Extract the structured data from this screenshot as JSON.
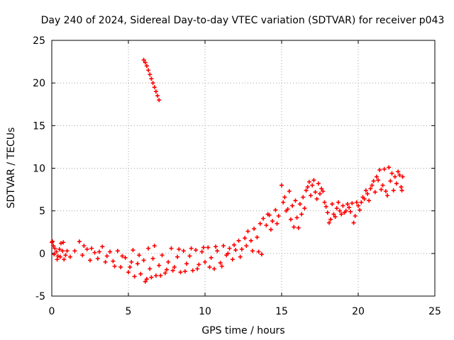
{
  "chart_data": {
    "type": "scatter",
    "title": "Day 240 of 2024, Sidereal Day-to-day VTEC variation (SDTVAR) for receiver p043",
    "xlabel": "GPS time / hours",
    "ylabel": "SDTVAR / TECUs",
    "xlim": [
      0,
      25
    ],
    "ylim": [
      -5,
      25
    ],
    "x_ticks": [
      "0",
      "5",
      "10",
      "15",
      "20",
      "25"
    ],
    "y_ticks": [
      "-5",
      "0",
      "5",
      "10",
      "15",
      "20",
      "25"
    ],
    "grid": true,
    "marker": "+",
    "series": [
      {
        "name": "SDTVAR",
        "color": "#ff0000",
        "points": [
          [
            0.0,
            1.3
          ],
          [
            0.1,
            0.9
          ],
          [
            0.2,
            0.6
          ],
          [
            0.3,
            0.2
          ],
          [
            0.4,
            -0.3
          ],
          [
            0.5,
            0.5
          ],
          [
            0.6,
            1.2
          ],
          [
            0.7,
            0.3
          ],
          [
            0.8,
            -0.7
          ],
          [
            0.9,
            -0.2
          ],
          [
            1.2,
            -0.4
          ],
          [
            1.5,
            0.3
          ],
          [
            1.8,
            1.4
          ],
          [
            2.0,
            -0.2
          ],
          [
            2.3,
            0.5
          ],
          [
            2.5,
            -0.8
          ],
          [
            2.8,
            0.1
          ],
          [
            3.0,
            -0.6
          ],
          [
            3.3,
            0.8
          ],
          [
            3.5,
            -1.0
          ],
          [
            3.8,
            0.2
          ],
          [
            4.0,
            -0.9
          ],
          [
            4.3,
            0.3
          ],
          [
            4.5,
            -1.6
          ],
          [
            4.8,
            -0.5
          ],
          [
            5.0,
            -2.2
          ],
          [
            5.2,
            -1.0
          ],
          [
            5.4,
            -2.7
          ],
          [
            5.6,
            -1.2
          ],
          [
            5.8,
            -2.4
          ],
          [
            6.0,
            -0.8
          ],
          [
            6.2,
            -3.0
          ],
          [
            6.4,
            -1.8
          ],
          [
            6.6,
            -0.6
          ],
          [
            6.8,
            -2.6
          ],
          [
            7.0,
            -1.4
          ],
          [
            7.2,
            -0.2
          ],
          [
            7.4,
            -2.3
          ],
          [
            7.6,
            -1.0
          ],
          [
            7.8,
            0.6
          ],
          [
            8.0,
            -1.6
          ],
          [
            8.2,
            -0.4
          ],
          [
            8.4,
            -2.2
          ],
          [
            8.6,
            0.3
          ],
          [
            8.8,
            -1.2
          ],
          [
            9.0,
            -0.3
          ],
          [
            9.2,
            -2.0
          ],
          [
            9.4,
            0.4
          ],
          [
            9.6,
            -1.3
          ],
          [
            9.8,
            0.2
          ],
          [
            10.0,
            -1.0
          ],
          [
            10.2,
            0.7
          ],
          [
            10.4,
            -0.5
          ],
          [
            10.6,
            -1.8
          ],
          [
            10.8,
            0.3
          ],
          [
            11.0,
            -1.1
          ],
          [
            11.2,
            0.9
          ],
          [
            11.4,
            -0.2
          ],
          [
            11.6,
            0.6
          ],
          [
            11.8,
            -0.7
          ],
          [
            12.0,
            0.4
          ],
          [
            12.2,
            1.5
          ],
          [
            12.4,
            0.5
          ],
          [
            12.6,
            1.8
          ],
          [
            12.8,
            2.6
          ],
          [
            13.0,
            1.5
          ],
          [
            13.2,
            2.9
          ],
          [
            13.4,
            1.9
          ],
          [
            13.6,
            3.5
          ],
          [
            13.8,
            4.1
          ],
          [
            14.0,
            3.3
          ],
          [
            14.2,
            4.5
          ],
          [
            14.4,
            3.8
          ],
          [
            14.6,
            5.1
          ],
          [
            14.8,
            4.4
          ],
          [
            15.0,
            8.0
          ],
          [
            15.2,
            6.6
          ],
          [
            15.4,
            5.2
          ],
          [
            15.6,
            4.0
          ],
          [
            15.8,
            3.1
          ],
          [
            16.0,
            4.2
          ],
          [
            16.2,
            5.8
          ],
          [
            16.4,
            6.6
          ],
          [
            16.6,
            7.4
          ],
          [
            16.8,
            8.4
          ],
          [
            17.0,
            8.0
          ],
          [
            17.2,
            7.2
          ],
          [
            17.4,
            8.2
          ],
          [
            17.6,
            7.6
          ],
          [
            17.8,
            6.0
          ],
          [
            18.0,
            4.8
          ],
          [
            18.2,
            4.0
          ],
          [
            18.4,
            4.6
          ],
          [
            18.6,
            5.3
          ],
          [
            18.8,
            5.0
          ],
          [
            19.0,
            5.6
          ],
          [
            19.2,
            5.0
          ],
          [
            19.4,
            5.4
          ],
          [
            19.6,
            5.9
          ],
          [
            19.8,
            4.4
          ],
          [
            20.0,
            5.6
          ],
          [
            20.2,
            6.0
          ],
          [
            20.4,
            6.4
          ],
          [
            20.6,
            7.0
          ],
          [
            20.8,
            7.6
          ],
          [
            21.0,
            8.5
          ],
          [
            21.2,
            9.0
          ],
          [
            21.4,
            9.8
          ],
          [
            21.6,
            8.0
          ],
          [
            21.8,
            7.3
          ],
          [
            22.0,
            10.1
          ],
          [
            22.2,
            9.4
          ],
          [
            22.4,
            9.0
          ],
          [
            22.6,
            9.6
          ],
          [
            22.8,
            7.8
          ],
          [
            22.9,
            9.0
          ],
          [
            6.0,
            22.7
          ],
          [
            6.2,
            22.0
          ],
          [
            6.4,
            21.0
          ],
          [
            6.6,
            20.0
          ],
          [
            6.8,
            19.0
          ],
          [
            7.0,
            18.0
          ],
          [
            0.05,
            1.4
          ],
          [
            0.15,
            -0.1
          ],
          [
            0.35,
            -0.7
          ],
          [
            0.55,
            -0.4
          ],
          [
            0.75,
            1.3
          ],
          [
            1.0,
            0.3
          ],
          [
            2.1,
            0.9
          ],
          [
            2.6,
            0.6
          ],
          [
            3.1,
            0.2
          ],
          [
            3.6,
            -0.3
          ],
          [
            4.1,
            -1.5
          ],
          [
            4.6,
            -0.3
          ],
          [
            5.1,
            -1.6
          ],
          [
            5.3,
            0.4
          ],
          [
            5.7,
            -0.2
          ],
          [
            6.1,
            -3.3
          ],
          [
            6.3,
            0.6
          ],
          [
            6.5,
            -2.8
          ],
          [
            6.7,
            0.9
          ],
          [
            7.1,
            -2.6
          ],
          [
            7.5,
            -1.9
          ],
          [
            7.9,
            -2.0
          ],
          [
            8.3,
            0.5
          ],
          [
            8.7,
            -2.1
          ],
          [
            9.1,
            0.6
          ],
          [
            9.5,
            -1.8
          ],
          [
            9.9,
            0.7
          ],
          [
            10.3,
            -1.6
          ],
          [
            10.7,
            0.8
          ],
          [
            11.1,
            -1.5
          ],
          [
            11.5,
            0.0
          ],
          [
            11.9,
            1.0
          ],
          [
            12.3,
            -0.4
          ],
          [
            12.7,
            0.9
          ],
          [
            13.1,
            0.3
          ],
          [
            13.5,
            0.2
          ],
          [
            13.7,
            -0.1
          ],
          [
            14.1,
            4.6
          ],
          [
            14.3,
            2.8
          ],
          [
            14.7,
            3.5
          ],
          [
            15.1,
            6.0
          ],
          [
            15.3,
            5.0
          ],
          [
            15.5,
            7.3
          ],
          [
            15.7,
            5.6
          ],
          [
            15.9,
            6.2
          ],
          [
            16.1,
            3.0
          ],
          [
            16.3,
            4.6
          ],
          [
            16.5,
            5.3
          ],
          [
            16.7,
            7.8
          ],
          [
            16.9,
            6.8
          ],
          [
            17.1,
            8.6
          ],
          [
            17.3,
            6.4
          ],
          [
            17.5,
            7.0
          ],
          [
            17.7,
            7.3
          ],
          [
            17.9,
            5.5
          ],
          [
            18.1,
            3.6
          ],
          [
            18.3,
            5.8
          ],
          [
            18.5,
            4.3
          ],
          [
            18.7,
            6.0
          ],
          [
            18.9,
            4.6
          ],
          [
            19.1,
            4.8
          ],
          [
            19.3,
            5.8
          ],
          [
            19.5,
            4.9
          ],
          [
            19.7,
            3.6
          ],
          [
            19.9,
            6.0
          ],
          [
            20.1,
            5.1
          ],
          [
            20.3,
            6.6
          ],
          [
            20.5,
            7.4
          ],
          [
            20.7,
            6.2
          ],
          [
            20.9,
            8.0
          ],
          [
            21.1,
            7.2
          ],
          [
            21.3,
            8.6
          ],
          [
            21.5,
            7.5
          ],
          [
            21.7,
            9.9
          ],
          [
            21.9,
            6.8
          ],
          [
            22.1,
            8.5
          ],
          [
            22.3,
            7.4
          ],
          [
            22.5,
            8.2
          ],
          [
            22.7,
            9.2
          ],
          [
            22.85,
            7.4
          ],
          [
            6.1,
            22.4
          ],
          [
            6.3,
            21.5
          ],
          [
            6.5,
            20.5
          ],
          [
            6.7,
            19.5
          ],
          [
            6.9,
            18.5
          ]
        ]
      }
    ]
  }
}
